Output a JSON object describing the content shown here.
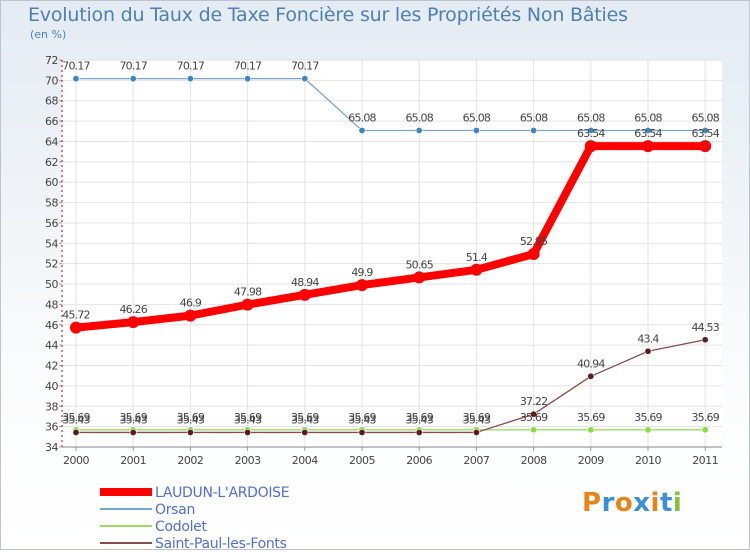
{
  "title": "Evolution du Taux de Taxe Foncière sur les Propriétés Non Bâties",
  "unit": "(en %)",
  "logo": {
    "text": "Proxiti"
  },
  "chart_data": {
    "type": "line",
    "title": "Evolution du Taux de Taxe Foncière sur les Propriétés Non Bâties",
    "ylabel": "(en %)",
    "xlabel": "",
    "ylim": [
      34,
      72
    ],
    "yticks": [
      34,
      36,
      38,
      40,
      42,
      44,
      46,
      48,
      50,
      52,
      54,
      56,
      58,
      60,
      62,
      64,
      66,
      68,
      70,
      72
    ],
    "categories": [
      "2000",
      "2001",
      "2002",
      "2003",
      "2004",
      "2005",
      "2006",
      "2007",
      "2008",
      "2009",
      "2010",
      "2011"
    ],
    "grid": true,
    "legend_position": "bottom-left",
    "series": [
      {
        "name": "LAUDUN-L'ARDOISE",
        "color": "#ff0000",
        "marker_color": "#ff0000",
        "emphasis": true,
        "values": [
          45.72,
          46.26,
          46.9,
          47.98,
          48.94,
          49.9,
          50.65,
          51.4,
          52.95,
          63.54,
          63.54,
          63.54
        ],
        "labels": [
          "45.72",
          "46.26",
          "46.9",
          "47.98",
          "48.94",
          "49.9",
          "50.65",
          "51.4",
          "52.95",
          "63.54",
          "63.54",
          "63.54"
        ]
      },
      {
        "name": "Orsan",
        "color": "#79a6cc",
        "marker_color": "#3d86c6",
        "emphasis": false,
        "values": [
          70.17,
          70.17,
          70.17,
          70.17,
          70.17,
          65.08,
          65.08,
          65.08,
          65.08,
          65.08,
          65.08,
          65.08
        ],
        "labels": [
          "70.17",
          "70.17",
          "70.17",
          "70.17",
          "70.17",
          "65.08",
          "65.08",
          "65.08",
          "65.08",
          "65.08",
          "65.08",
          "65.08"
        ]
      },
      {
        "name": "Codolet",
        "color": "#99dd66",
        "marker_color": "#88dd44",
        "emphasis": false,
        "values": [
          35.69,
          35.69,
          35.69,
          35.69,
          35.69,
          35.69,
          35.69,
          35.69,
          35.69,
          35.69,
          35.69,
          35.69
        ],
        "labels": [
          "35.69",
          "35.69",
          "35.69",
          "35.69",
          "35.69",
          "35.69",
          "35.69",
          "35.69",
          "35.69",
          "35.69",
          "35.69",
          "35.69"
        ]
      },
      {
        "name": "Saint-Paul-les-Fonts",
        "color": "#8b4a4a",
        "marker_color": "#5e1d1d",
        "emphasis": false,
        "values": [
          35.43,
          35.43,
          35.43,
          35.43,
          35.43,
          35.43,
          35.43,
          35.43,
          37.22,
          40.94,
          43.4,
          44.53
        ],
        "labels": [
          "35.43",
          "35.43",
          "35.43",
          "35.43",
          "35.43",
          "35.43",
          "35.43",
          "35.43",
          "37.22",
          "40.94",
          "43.4",
          "44.53"
        ]
      }
    ]
  }
}
